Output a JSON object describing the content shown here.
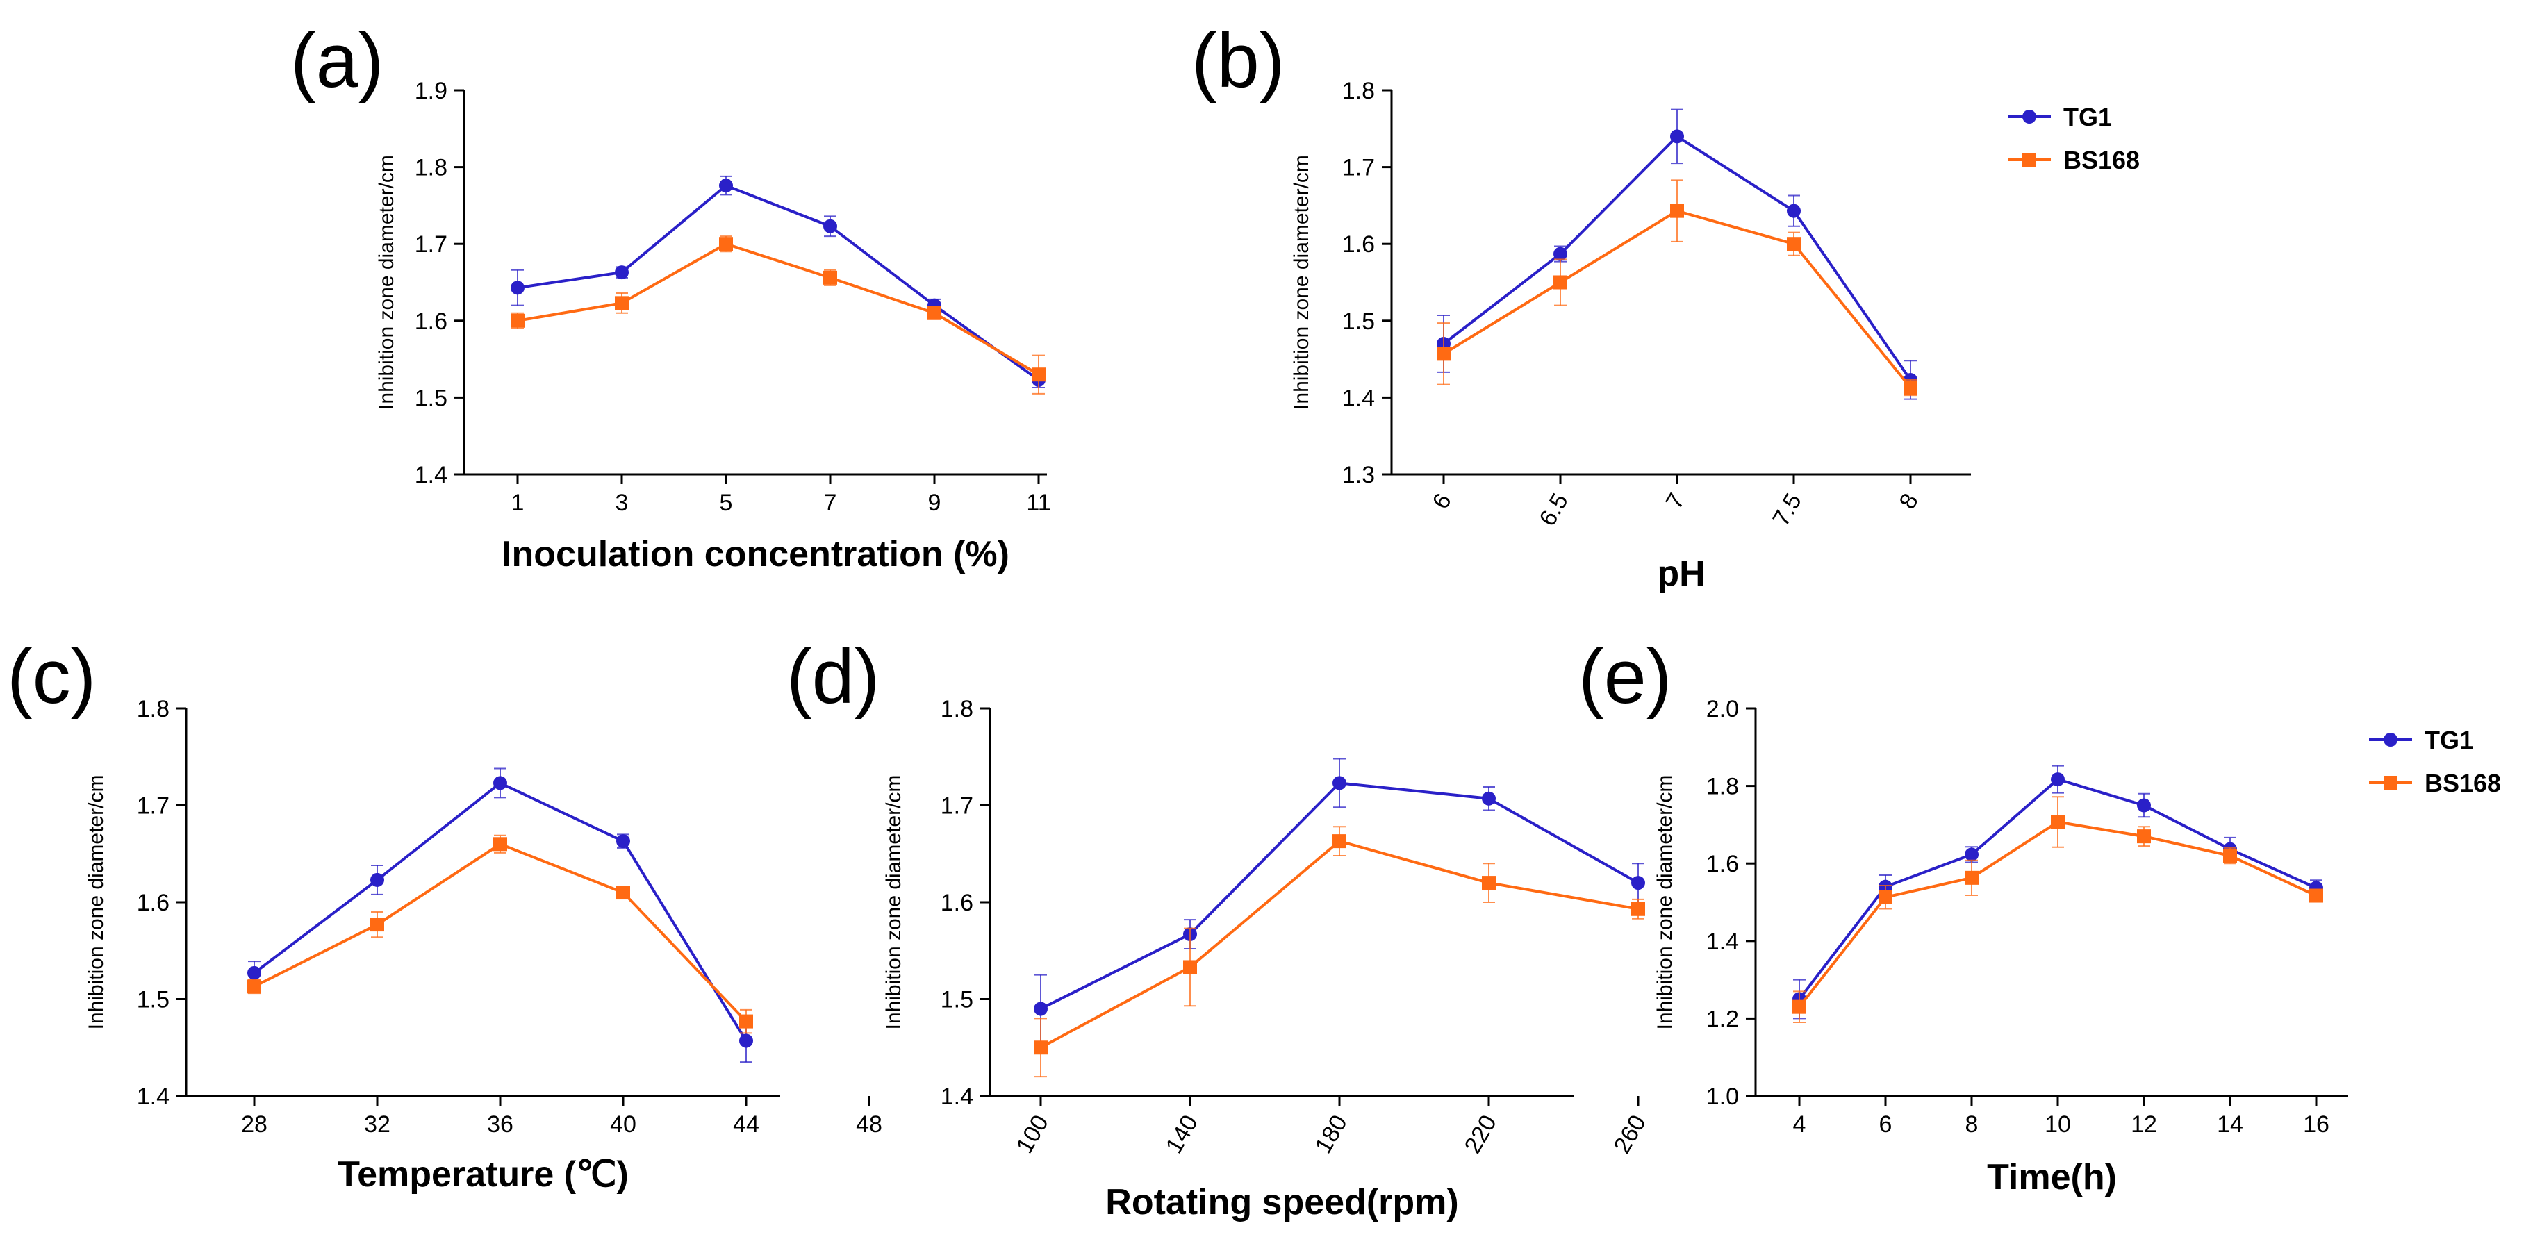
{
  "colors": {
    "TG1": "#2a20c8",
    "BS168": "#ff6a13",
    "axis": "#000000"
  },
  "chart_data": [
    {
      "panel": "(a)",
      "type": "line",
      "xlabel": "Inoculation concentration (%)",
      "ylabel": "Inhibition zone diameter/cm",
      "categories": [
        "1",
        "3",
        "5",
        "7",
        "9",
        "11"
      ],
      "x_tick_rotation": 0,
      "ylim": [
        1.4,
        1.9
      ],
      "yticks": [
        "1.4",
        "1.5",
        "1.6",
        "1.7",
        "1.8",
        "1.9"
      ],
      "series": [
        {
          "name": "TG1",
          "values": [
            1.643,
            1.663,
            1.776,
            1.723,
            1.62,
            1.523
          ],
          "errors": [
            0.023,
            0.007,
            0.012,
            0.013,
            0.008,
            0.01
          ]
        },
        {
          "name": "BS168",
          "values": [
            1.6,
            1.623,
            1.7,
            1.656,
            1.61,
            1.53
          ],
          "errors": [
            0.01,
            0.013,
            0.01,
            0.01,
            0.006,
            0.025
          ]
        }
      ],
      "legend": "top-right"
    },
    {
      "panel": "(b)",
      "type": "line",
      "xlabel": "pH",
      "ylabel": "Inhibition zone diameter/cm",
      "categories": [
        "6",
        "6.5",
        "7",
        "7.5",
        "8"
      ],
      "x_tick_rotation": -60,
      "ylim": [
        1.3,
        1.8
      ],
      "yticks": [
        "1.3",
        "1.4",
        "1.5",
        "1.6",
        "1.7",
        "1.8"
      ],
      "series": [
        {
          "name": "TG1",
          "values": [
            1.47,
            1.587,
            1.74,
            1.643,
            1.423
          ],
          "errors": [
            0.037,
            0.01,
            0.035,
            0.02,
            0.025
          ]
        },
        {
          "name": "BS168",
          "values": [
            1.457,
            1.55,
            1.643,
            1.6,
            1.413
          ],
          "errors": [
            0.04,
            0.03,
            0.04,
            0.015,
            0.01
          ]
        }
      ],
      "legend": "top-right"
    },
    {
      "panel": "(c)",
      "type": "line",
      "xlabel": "Temperature (℃)",
      "ylabel": "Inhibition zone diameter/cm",
      "categories": [
        "28",
        "32",
        "36",
        "40",
        "44",
        "48"
      ],
      "x_tick_rotation": 0,
      "ylim": [
        1.4,
        1.8
      ],
      "yticks": [
        "1.4",
        "1.5",
        "1.6",
        "1.7",
        "1.8"
      ],
      "series": [
        {
          "name": "TG1",
          "values": [
            1.527,
            1.623,
            1.723,
            1.663,
            1.457,
            null
          ],
          "errors": [
            0.012,
            0.015,
            0.015,
            0.007,
            0.022,
            null
          ]
        },
        {
          "name": "BS168",
          "values": [
            1.513,
            1.577,
            1.66,
            1.61,
            1.477,
            null
          ],
          "errors": [
            0.007,
            0.013,
            0.009,
            0.004,
            0.012,
            null
          ]
        }
      ],
      "legend": "none"
    },
    {
      "panel": "(d)",
      "type": "line",
      "xlabel": "Rotating speed(rpm)",
      "ylabel": "Inhibition zone diameter/cm",
      "categories": [
        "100",
        "140",
        "180",
        "220",
        "260"
      ],
      "x_tick_rotation": -60,
      "ylim": [
        1.4,
        1.8
      ],
      "yticks": [
        "1.4",
        "1.5",
        "1.6",
        "1.7",
        "1.8"
      ],
      "series": [
        {
          "name": "TG1",
          "values": [
            1.49,
            1.567,
            1.723,
            1.707,
            1.62
          ],
          "errors": [
            0.035,
            0.015,
            0.025,
            0.012,
            0.02
          ]
        },
        {
          "name": "BS168",
          "values": [
            1.45,
            1.533,
            1.663,
            1.62,
            1.593
          ],
          "errors": [
            0.03,
            0.04,
            0.015,
            0.02,
            0.01
          ]
        }
      ],
      "legend": "none"
    },
    {
      "panel": "(e)",
      "type": "line",
      "xlabel": "Time(h)",
      "ylabel": "Inhibition zone diameter/cm",
      "categories": [
        "4",
        "6",
        "8",
        "10",
        "12",
        "14",
        "16"
      ],
      "x_tick_rotation": 0,
      "ylim": [
        1.0,
        2.0
      ],
      "yticks": [
        "1.0",
        "1.2",
        "1.4",
        "1.6",
        "1.8",
        "2.0"
      ],
      "series": [
        {
          "name": "TG1",
          "values": [
            1.25,
            1.54,
            1.623,
            1.817,
            1.75,
            1.637,
            1.537
          ],
          "errors": [
            0.05,
            0.03,
            0.02,
            0.035,
            0.03,
            0.03,
            0.02
          ]
        },
        {
          "name": "BS168",
          "values": [
            1.23,
            1.513,
            1.563,
            1.707,
            1.67,
            1.62,
            1.517
          ],
          "errors": [
            0.04,
            0.03,
            0.045,
            0.065,
            0.025,
            0.02,
            0.015
          ]
        }
      ],
      "legend": "top-right"
    }
  ]
}
